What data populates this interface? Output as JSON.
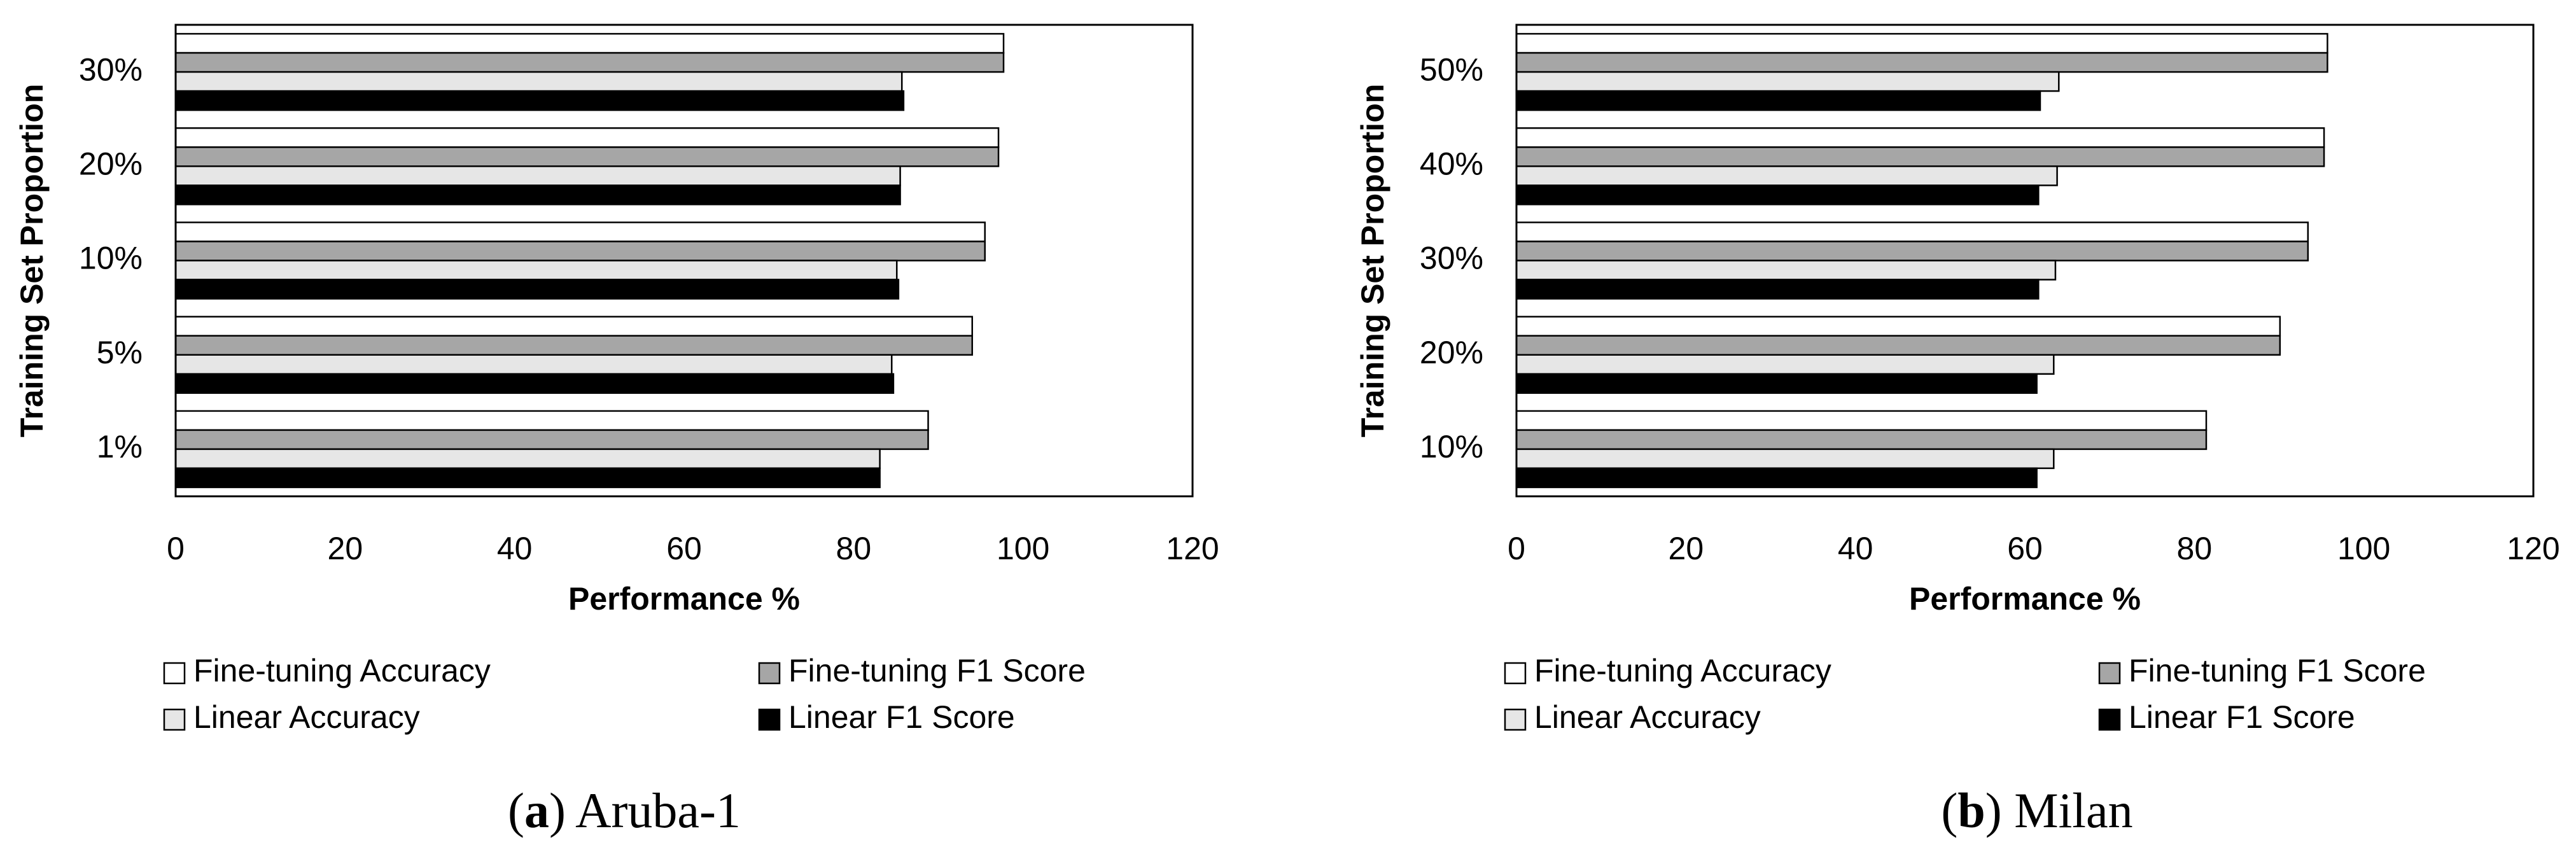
{
  "chart_data": [
    {
      "type": "bar",
      "orientation": "horizontal",
      "caption_parts": [
        "(",
        "a",
        ") Aruba-1"
      ],
      "xlabel": "Performance %",
      "ylabel": "Training Set Proportion",
      "categories": [
        "1%",
        "5%",
        "10%",
        "20%",
        "30%"
      ],
      "series": [
        {
          "name": "Fine-tuning Accuracy",
          "color": "#ffffff",
          "values": [
            88.8,
            94.0,
            95.5,
            97.1,
            97.7
          ]
        },
        {
          "name": "Fine-tuning F1 Score",
          "color": "#a6a6a6",
          "values": [
            88.8,
            94.0,
            95.5,
            97.1,
            97.7
          ]
        },
        {
          "name": "Linear Accuracy",
          "color": "#e6e6e6",
          "values": [
            83.1,
            84.5,
            85.1,
            85.5,
            85.7
          ]
        },
        {
          "name": "Linear F1 Score",
          "color": "#000000",
          "values": [
            83.1,
            84.7,
            85.3,
            85.5,
            85.9
          ]
        }
      ],
      "xlim": [
        0,
        120
      ],
      "xticks": [
        0,
        20,
        40,
        60,
        80,
        100,
        120
      ]
    },
    {
      "type": "bar",
      "orientation": "horizontal",
      "caption_parts": [
        "(",
        "b",
        ") Milan"
      ],
      "xlabel": "Performance %",
      "ylabel": "Training Set Proportion",
      "categories": [
        "10%",
        "20%",
        "30%",
        "40%",
        "50%"
      ],
      "series": [
        {
          "name": "Fine-tuning Accuracy",
          "color": "#ffffff",
          "values": [
            81.4,
            90.1,
            93.4,
            95.3,
            95.7
          ]
        },
        {
          "name": "Fine-tuning F1 Score",
          "color": "#a6a6a6",
          "values": [
            81.4,
            90.1,
            93.4,
            95.3,
            95.7
          ]
        },
        {
          "name": "Linear Accuracy",
          "color": "#e6e6e6",
          "values": [
            63.4,
            63.4,
            63.6,
            63.8,
            64.0
          ]
        },
        {
          "name": "Linear F1 Score",
          "color": "#000000",
          "values": [
            61.4,
            61.4,
            61.6,
            61.6,
            61.8
          ]
        }
      ],
      "xlim": [
        0,
        120
      ],
      "xticks": [
        0,
        20,
        40,
        60,
        80,
        100,
        120
      ]
    }
  ]
}
